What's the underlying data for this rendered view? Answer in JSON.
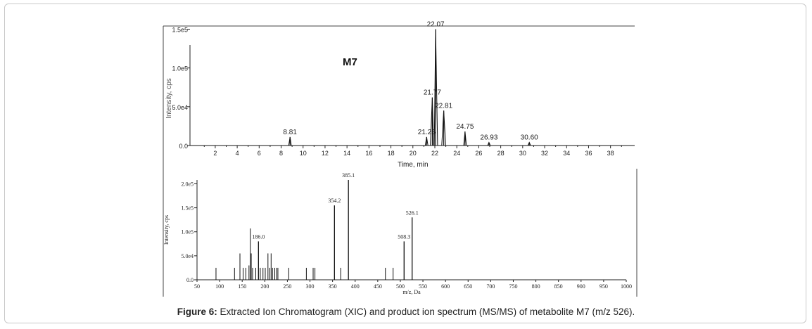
{
  "caption": {
    "label": "Figure 6:",
    "text": " Extracted Ion Chromatogram (XIC) and product ion spectrum (MS/MS) of metabolite M7 (m/z 526)."
  },
  "chart_data": [
    {
      "type": "line",
      "title": "M7",
      "xlabel": "Time, min",
      "ylabel": "Intensity, cps",
      "xlim": [
        -0.3,
        40.2
      ],
      "ylim": [
        0,
        155000
      ],
      "xticks": [
        2,
        4,
        6,
        8,
        10,
        12,
        14,
        16,
        18,
        20,
        22,
        24,
        26,
        28,
        30,
        32,
        34,
        36,
        38
      ],
      "yticks": [
        {
          "value": 0,
          "label": "0.0"
        },
        {
          "value": 50000,
          "label": "5.0e4"
        },
        {
          "value": 100000,
          "label": "1.0e5"
        },
        {
          "value": 150000,
          "label": "1.5e5"
        }
      ],
      "peaks": [
        {
          "x": 8.81,
          "y": 11000,
          "label": "8.81"
        },
        {
          "x": 21.25,
          "y": 11000,
          "label": "21.25"
        },
        {
          "x": 21.77,
          "y": 62000,
          "label": "21.77"
        },
        {
          "x": 22.07,
          "y": 150000,
          "label": "22.07"
        },
        {
          "x": 22.81,
          "y": 45000,
          "label": "22.81"
        },
        {
          "x": 24.75,
          "y": 18000,
          "label": "24.75"
        },
        {
          "x": 26.93,
          "y": 4000,
          "label": "26.93"
        },
        {
          "x": 30.6,
          "y": 4000,
          "label": "30.60"
        }
      ]
    },
    {
      "type": "bar",
      "xlabel": "m/z, Da",
      "ylabel": "Intensity, cps",
      "xlim": [
        50,
        1000
      ],
      "ylim": [
        0,
        208000
      ],
      "xticks": [
        50,
        100,
        150,
        200,
        250,
        300,
        350,
        400,
        450,
        500,
        550,
        600,
        650,
        700,
        750,
        800,
        850,
        900,
        950,
        1000
      ],
      "yticks": [
        {
          "value": 0,
          "label": "0.0"
        },
        {
          "value": 50000,
          "label": "5.0e4"
        },
        {
          "value": 100000,
          "label": "1.0e5"
        },
        {
          "value": 150000,
          "label": "1.5e5"
        },
        {
          "value": 200000,
          "label": "2.0e5"
        }
      ],
      "labeled_peaks": [
        {
          "x": 186.0,
          "y": 80000,
          "label": "186.0"
        },
        {
          "x": 354.2,
          "y": 155000,
          "label": "354.2"
        },
        {
          "x": 385.1,
          "y": 208000,
          "label": "385.1"
        },
        {
          "x": 508.3,
          "y": 80000,
          "label": "508.3"
        },
        {
          "x": 526.1,
          "y": 130000,
          "label": "526.1"
        }
      ],
      "other_peaks": [
        {
          "x": 92,
          "y": 25000
        },
        {
          "x": 133,
          "y": 25000
        },
        {
          "x": 145,
          "y": 55000
        },
        {
          "x": 152,
          "y": 25000
        },
        {
          "x": 158,
          "y": 25000
        },
        {
          "x": 165,
          "y": 30000
        },
        {
          "x": 168,
          "y": 107000
        },
        {
          "x": 170,
          "y": 55000
        },
        {
          "x": 173,
          "y": 25000
        },
        {
          "x": 180,
          "y": 25000
        },
        {
          "x": 190,
          "y": 25000
        },
        {
          "x": 196,
          "y": 25000
        },
        {
          "x": 201,
          "y": 25000
        },
        {
          "x": 207,
          "y": 55000
        },
        {
          "x": 211,
          "y": 25000
        },
        {
          "x": 214,
          "y": 55000
        },
        {
          "x": 217,
          "y": 25000
        },
        {
          "x": 222,
          "y": 25000
        },
        {
          "x": 226,
          "y": 25000
        },
        {
          "x": 229,
          "y": 25000
        },
        {
          "x": 253,
          "y": 25000
        },
        {
          "x": 292,
          "y": 25000
        },
        {
          "x": 307,
          "y": 25000
        },
        {
          "x": 311,
          "y": 25000
        },
        {
          "x": 368,
          "y": 25000
        },
        {
          "x": 467,
          "y": 25000
        },
        {
          "x": 484,
          "y": 25000
        }
      ]
    }
  ]
}
